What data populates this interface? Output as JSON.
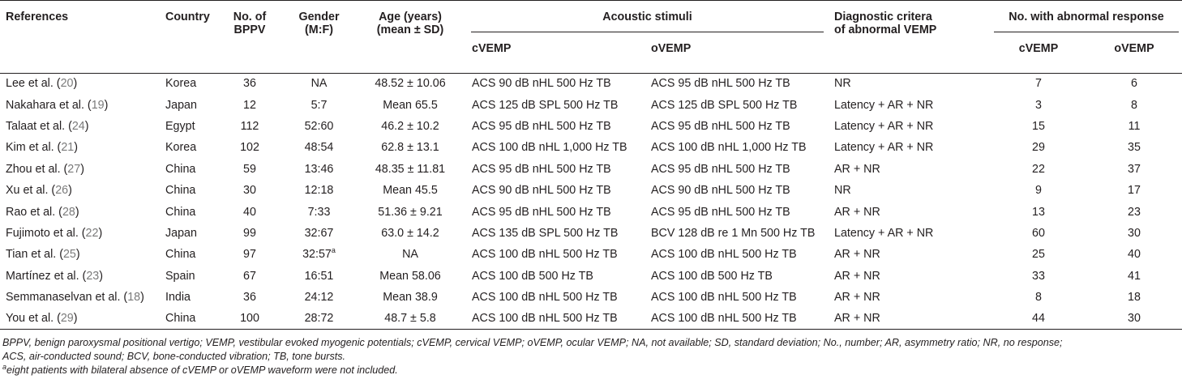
{
  "headers": {
    "references": "References",
    "country": "Country",
    "bppv_line1": "No. of",
    "bppv_line2": "BPPV",
    "gender_line1": "Gender",
    "gender_line2": "(M:F)",
    "age_line1": "Age (years)",
    "age_line2": "(mean ± SD)",
    "acoustic": "Acoustic stimuli",
    "cvemp": "cVEMP",
    "ovemp": "oVEMP",
    "diag_line1": "Diagnostic critera",
    "diag_line2": "of abnormal VEMP",
    "abnormal": "No. with abnormal response",
    "abn_cvemp": "cVEMP",
    "abn_ovemp": "oVEMP"
  },
  "rows": [
    {
      "ref": "Lee et al. (",
      "cite": "20",
      "close": ")",
      "country": "Korea",
      "bppv": "36",
      "gender": "NA",
      "gender_sup": "",
      "age": "48.52 ± 10.06",
      "cstim": "ACS 90 dB nHL 500 Hz TB",
      "ostim": "ACS 95 dB nHL 500 Hz TB",
      "diag": "NR",
      "abn_c": "7",
      "abn_o": "6"
    },
    {
      "ref": "Nakahara et al. (",
      "cite": "19",
      "close": ")",
      "country": "Japan",
      "bppv": "12",
      "gender": "5:7",
      "gender_sup": "",
      "age": "Mean 65.5",
      "cstim": "ACS 125 dB SPL 500 Hz TB",
      "ostim": "ACS 125 dB SPL 500 Hz TB",
      "diag": "Latency + AR + NR",
      "abn_c": "3",
      "abn_o": "8"
    },
    {
      "ref": "Talaat et al. (",
      "cite": "24",
      "close": ")",
      "country": "Egypt",
      "bppv": "112",
      "gender": "52:60",
      "gender_sup": "",
      "age": "46.2 ± 10.2",
      "cstim": "ACS 95 dB nHL 500 Hz TB",
      "ostim": "ACS 95 dB nHL 500 Hz TB",
      "diag": "Latency + AR + NR",
      "abn_c": "15",
      "abn_o": "11"
    },
    {
      "ref": "Kim et al. (",
      "cite": "21",
      "close": ")",
      "country": "Korea",
      "bppv": "102",
      "gender": "48:54",
      "gender_sup": "",
      "age": "62.8 ± 13.1",
      "cstim": "ACS 100 dB nHL 1,000 Hz TB",
      "ostim": "ACS 100 dB nHL 1,000 Hz TB",
      "diag": "Latency + AR + NR",
      "abn_c": "29",
      "abn_o": "35"
    },
    {
      "ref": "Zhou et al. (",
      "cite": "27",
      "close": ")",
      "country": "China",
      "bppv": "59",
      "gender": "13:46",
      "gender_sup": "",
      "age": "48.35 ± 11.81",
      "cstim": "ACS 95 dB nHL 500 Hz TB",
      "ostim": "ACS 95 dB nHL 500 Hz TB",
      "diag": "AR + NR",
      "abn_c": "22",
      "abn_o": "37"
    },
    {
      "ref": "Xu et al. (",
      "cite": "26",
      "close": ")",
      "country": "China",
      "bppv": "30",
      "gender": "12:18",
      "gender_sup": "",
      "age": "Mean 45.5",
      "cstim": "ACS 90 dB nHL 500 Hz TB",
      "ostim": "ACS 90 dB nHL 500 Hz TB",
      "diag": "NR",
      "abn_c": "9",
      "abn_o": "17"
    },
    {
      "ref": "Rao et al. (",
      "cite": "28",
      "close": ")",
      "country": "China",
      "bppv": "40",
      "gender": "7:33",
      "gender_sup": "",
      "age": "51.36 ± 9.21",
      "cstim": "ACS 95 dB nHL 500 Hz TB",
      "ostim": "ACS 95 dB nHL 500 Hz TB",
      "diag": "AR + NR",
      "abn_c": "13",
      "abn_o": "23"
    },
    {
      "ref": "Fujimoto et al. (",
      "cite": "22",
      "close": ")",
      "country": "Japan",
      "bppv": "99",
      "gender": "32:67",
      "gender_sup": "",
      "age": "63.0 ± 14.2",
      "cstim": "ACS 135 dB SPL 500 Hz TB",
      "ostim": "BCV 128 dB re 1 Mn 500 Hz TB",
      "diag": "Latency + AR + NR",
      "abn_c": "60",
      "abn_o": "30"
    },
    {
      "ref": "Tian et al. (",
      "cite": "25",
      "close": ")",
      "country": "China",
      "bppv": "97",
      "gender": "32:57",
      "gender_sup": "a",
      "age": "NA",
      "cstim": "ACS 100 dB nHL 500 Hz TB",
      "ostim": "ACS 100 dB nHL 500 Hz TB",
      "diag": "AR + NR",
      "abn_c": "25",
      "abn_o": "40"
    },
    {
      "ref": "Martínez et al. (",
      "cite": "23",
      "close": ")",
      "country": "Spain",
      "bppv": "67",
      "gender": "16:51",
      "gender_sup": "",
      "age": "Mean 58.06",
      "cstim": "ACS 100 dB 500 Hz TB",
      "ostim": "ACS 100 dB 500 Hz TB",
      "diag": "AR + NR",
      "abn_c": "33",
      "abn_o": "41"
    },
    {
      "ref": "Semmanaselvan et al. (",
      "cite": "18",
      "close": ")",
      "country": "India",
      "bppv": "36",
      "gender": "24:12",
      "gender_sup": "",
      "age": "Mean 38.9",
      "cstim": "ACS 100 dB nHL 500 Hz TB",
      "ostim": "ACS 100 dB nHL 500 Hz TB",
      "diag": "AR + NR",
      "abn_c": "8",
      "abn_o": "18"
    },
    {
      "ref": "You et al. (",
      "cite": "29",
      "close": ")",
      "country": "China",
      "bppv": "100",
      "gender": "28:72",
      "gender_sup": "",
      "age": "48.7 ± 5.8",
      "cstim": "ACS 100 dB nHL 500 Hz TB",
      "ostim": "ACS 100 dB nHL 500 Hz TB",
      "diag": "AR + NR",
      "abn_c": "44",
      "abn_o": "30"
    }
  ],
  "footnote": {
    "abbrev_line1": "BPPV, benign paroxysmal positional vertigo; VEMP, vestibular evoked myogenic potentials; cVEMP, cervical VEMP; oVEMP, ocular VEMP; NA, not available; SD, standard deviation; No., number; AR, asymmetry ratio; NR, no response;",
    "abbrev_line2": "ACS, air-conducted sound; BCV, bone-conducted vibration; TB, tone bursts.",
    "note_sup": "a",
    "note_text": "eight patients with bilateral absence of cVEMP or oVEMP waveform were not included."
  }
}
